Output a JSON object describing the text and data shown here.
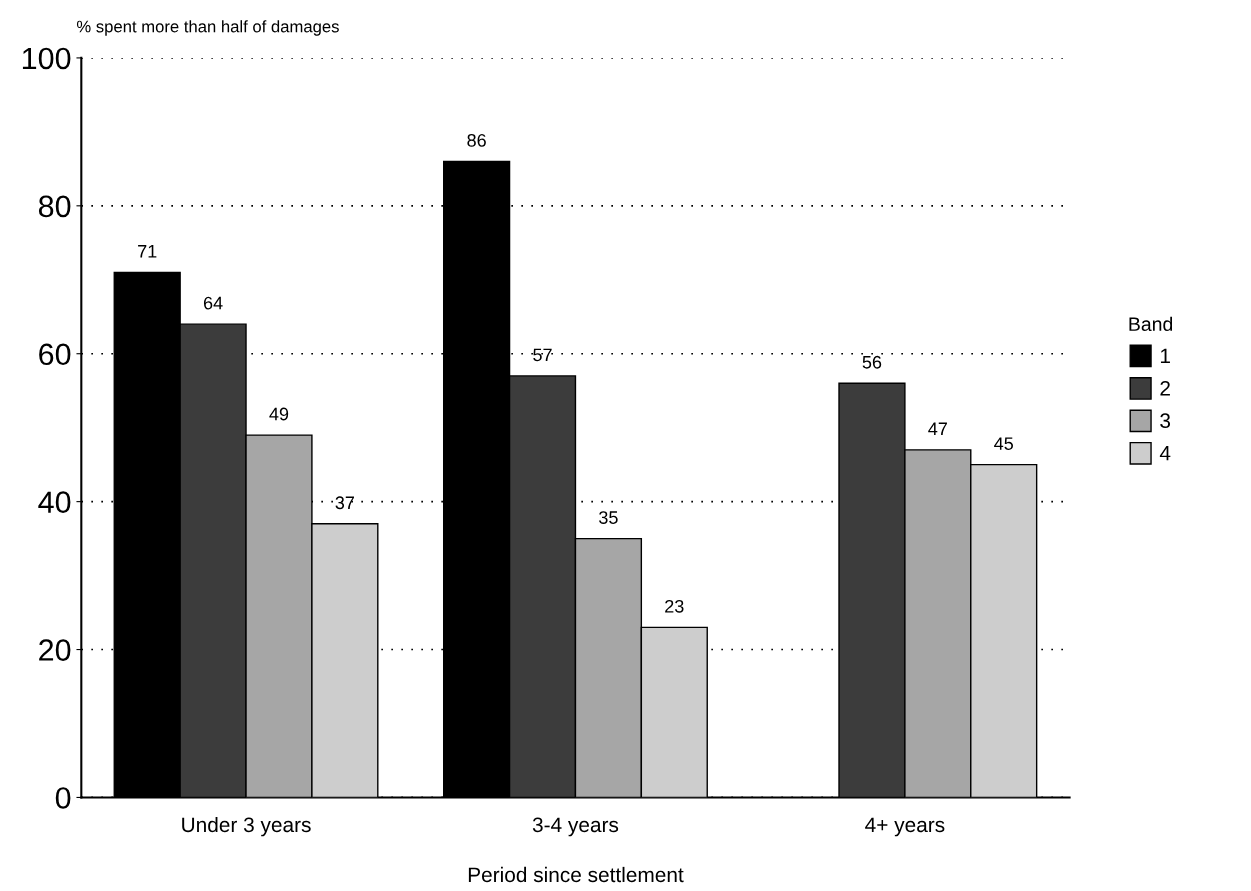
{
  "chart_data": {
    "type": "bar",
    "ylabel": "% spent more than half of damages",
    "xlabel": "Period since settlement",
    "legend_title": "Band",
    "categories": [
      "Under 3 years",
      "3-4 years",
      "4+ years"
    ],
    "series": [
      {
        "name": "1",
        "color": "#000000",
        "values": [
          71,
          86,
          null
        ]
      },
      {
        "name": "2",
        "color": "#3c3c3c",
        "values": [
          64,
          57,
          56
        ]
      },
      {
        "name": "3",
        "color": "#a6a6a6",
        "values": [
          49,
          35,
          47
        ]
      },
      {
        "name": "4",
        "color": "#cdcdcd",
        "values": [
          37,
          23,
          45
        ]
      }
    ],
    "ylim": [
      0,
      100
    ],
    "yticks": [
      0,
      20,
      40,
      60,
      80,
      100
    ],
    "grid": "y",
    "legend": "right",
    "data_labels": true
  }
}
